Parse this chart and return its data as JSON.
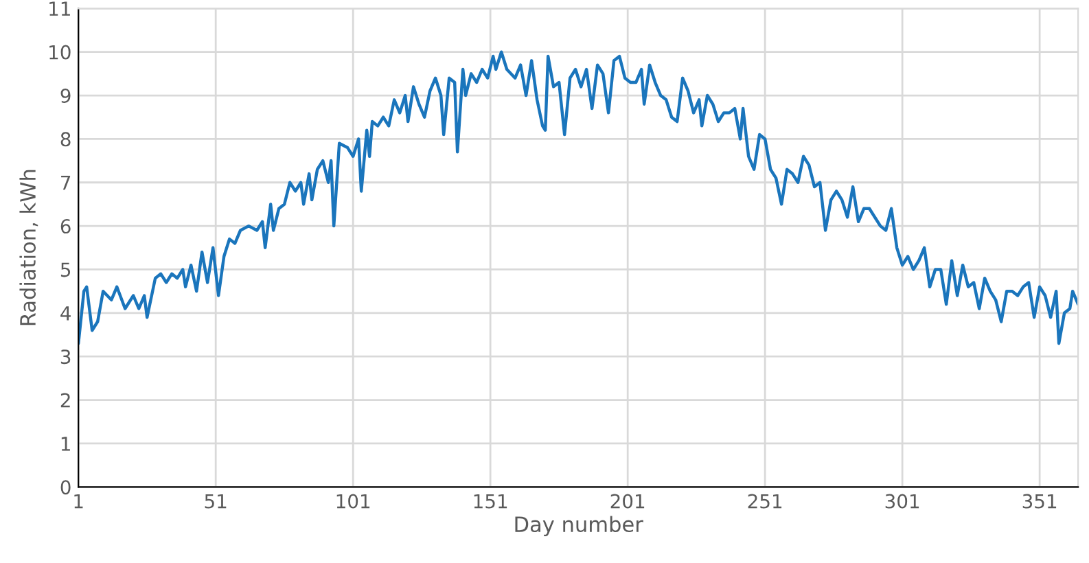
{
  "chart_data": {
    "type": "line",
    "xlabel": "Day number",
    "ylabel": "Radiation, kWh",
    "xlim": [
      1,
      365
    ],
    "xticks": [
      1,
      51,
      101,
      151,
      201,
      251,
      301,
      351
    ],
    "ylim": [
      0,
      11
    ],
    "yticks": [
      0,
      1,
      2,
      3,
      4,
      5,
      6,
      7,
      8,
      9,
      10,
      11
    ],
    "grid": true,
    "series": [
      {
        "color": "#1a75bc",
        "x": [
          1,
          3,
          4,
          6,
          8,
          10,
          13,
          15,
          18,
          21,
          23,
          25,
          26,
          29,
          31,
          33,
          35,
          37,
          39,
          40,
          42,
          44,
          46,
          48,
          50,
          52,
          54,
          56,
          58,
          60,
          63,
          66,
          68,
          69,
          71,
          72,
          74,
          76,
          78,
          80,
          82,
          83,
          85,
          86,
          88,
          90,
          92,
          93,
          94,
          96,
          99,
          101,
          103,
          104,
          106,
          107,
          108,
          110,
          112,
          114,
          116,
          118,
          120,
          121,
          123,
          125,
          127,
          129,
          131,
          133,
          134,
          136,
          138,
          139,
          141,
          142,
          144,
          146,
          148,
          150,
          152,
          153,
          155,
          157,
          160,
          162,
          164,
          166,
          168,
          170,
          171,
          172,
          174,
          176,
          178,
          180,
          182,
          184,
          186,
          188,
          190,
          192,
          194,
          196,
          198,
          200,
          202,
          204,
          206,
          207,
          209,
          211,
          213,
          215,
          217,
          219,
          221,
          223,
          225,
          227,
          228,
          230,
          232,
          234,
          236,
          238,
          240,
          242,
          243,
          245,
          247,
          249,
          251,
          253,
          255,
          257,
          259,
          261,
          263,
          265,
          267,
          269,
          271,
          273,
          275,
          277,
          279,
          281,
          283,
          285,
          287,
          289,
          291,
          293,
          295,
          297,
          299,
          301,
          303,
          305,
          307,
          309,
          311,
          313,
          315,
          317,
          319,
          321,
          323,
          325,
          327,
          329,
          331,
          333,
          335,
          337,
          339,
          341,
          343,
          345,
          347,
          349,
          351,
          353,
          355,
          357,
          358,
          360,
          362,
          363,
          365
        ],
        "values": [
          3.3,
          4.5,
          4.6,
          3.6,
          3.8,
          4.5,
          4.3,
          4.6,
          4.1,
          4.4,
          4.1,
          4.4,
          3.9,
          4.8,
          4.9,
          4.7,
          4.9,
          4.8,
          5.0,
          4.6,
          5.1,
          4.5,
          5.4,
          4.7,
          5.5,
          4.4,
          5.3,
          5.7,
          5.6,
          5.9,
          6.0,
          5.9,
          6.1,
          5.5,
          6.5,
          5.9,
          6.4,
          6.5,
          7.0,
          6.8,
          7.0,
          6.5,
          7.2,
          6.6,
          7.3,
          7.5,
          7.0,
          7.5,
          6.0,
          7.9,
          7.8,
          7.6,
          8.0,
          6.8,
          8.2,
          7.6,
          8.4,
          8.3,
          8.5,
          8.3,
          8.9,
          8.6,
          9.0,
          8.4,
          9.2,
          8.8,
          8.5,
          9.1,
          9.4,
          9.0,
          8.1,
          9.4,
          9.3,
          7.7,
          9.6,
          9.0,
          9.5,
          9.3,
          9.6,
          9.4,
          9.9,
          9.6,
          10.0,
          9.6,
          9.4,
          9.7,
          9.0,
          9.8,
          8.9,
          8.3,
          8.2,
          9.9,
          9.2,
          9.3,
          8.1,
          9.4,
          9.6,
          9.2,
          9.6,
          8.7,
          9.7,
          9.5,
          8.6,
          9.8,
          9.9,
          9.4,
          9.3,
          9.3,
          9.6,
          8.8,
          9.7,
          9.3,
          9.0,
          8.9,
          8.5,
          8.4,
          9.4,
          9.1,
          8.6,
          8.9,
          8.3,
          9.0,
          8.8,
          8.4,
          8.6,
          8.6,
          8.7,
          8.0,
          8.7,
          7.6,
          7.3,
          8.1,
          8.0,
          7.3,
          7.1,
          6.5,
          7.3,
          7.2,
          7.0,
          7.6,
          7.4,
          6.9,
          7.0,
          5.9,
          6.6,
          6.8,
          6.6,
          6.2,
          6.9,
          6.1,
          6.4,
          6.4,
          6.2,
          6.0,
          5.9,
          6.4,
          5.5,
          5.1,
          5.3,
          5.0,
          5.2,
          5.5,
          4.6,
          5.0,
          5.0,
          4.2,
          5.2,
          4.4,
          5.1,
          4.6,
          4.7,
          4.1,
          4.8,
          4.5,
          4.3,
          3.8,
          4.5,
          4.5,
          4.4,
          4.6,
          4.7,
          3.9,
          4.6,
          4.4,
          3.9,
          4.5,
          3.3,
          4.0,
          4.1,
          4.5,
          4.2
        ]
      }
    ]
  }
}
